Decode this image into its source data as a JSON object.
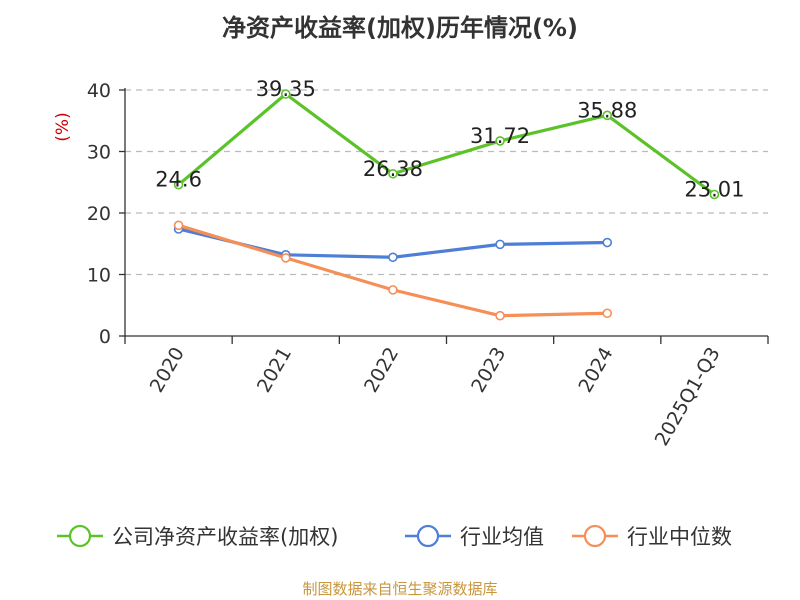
{
  "title": "净资产收益率(加权)历年情况(%)",
  "footer": "制图数据来自恒生聚源数据库",
  "chart_data": {
    "type": "line",
    "categories": [
      "2020",
      "2021",
      "2022",
      "2023",
      "2024",
      "2025Q1-Q3"
    ],
    "ylabel": "(%)",
    "ylim": [
      0,
      40
    ],
    "yticks": [
      0,
      10,
      20,
      30,
      40
    ],
    "grid": true,
    "legend_position": "bottom",
    "series": [
      {
        "name": "公司净资产收益率(加权)",
        "color": "#5bc22a",
        "values": [
          24.6,
          39.35,
          26.38,
          31.72,
          35.88,
          23.01
        ],
        "labels": [
          "24.6",
          "39.35",
          "26.38",
          "31.72",
          "35.88",
          "23.01"
        ]
      },
      {
        "name": "行业均值",
        "color": "#4e7fd6",
        "values": [
          17.4,
          13.2,
          12.8,
          14.9,
          15.2,
          null
        ]
      },
      {
        "name": "行业中位数",
        "color": "#f58e57",
        "values": [
          18.0,
          12.7,
          7.5,
          3.3,
          3.7,
          null
        ]
      }
    ]
  }
}
